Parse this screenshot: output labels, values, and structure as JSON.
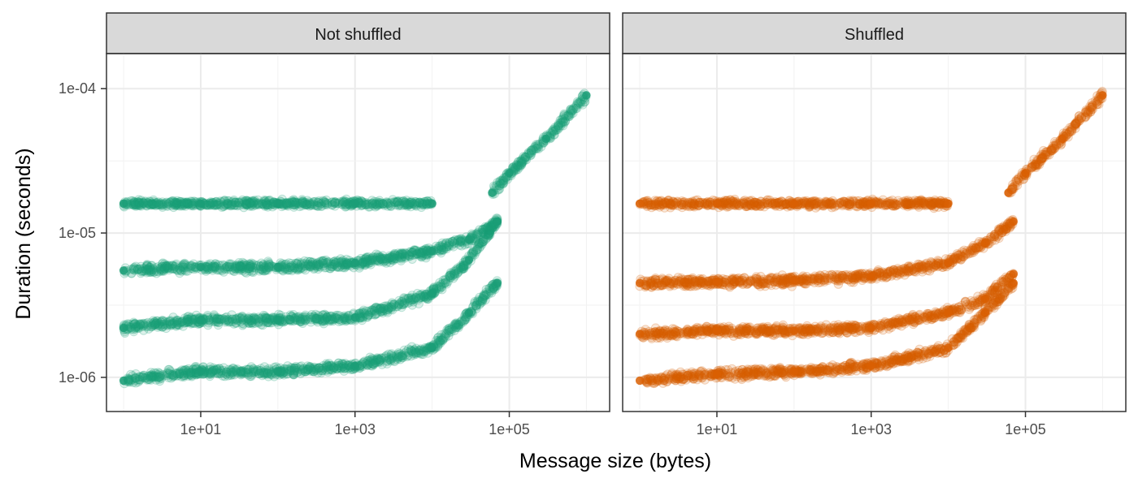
{
  "chart_data": {
    "type": "scatter",
    "x_scale": "log10",
    "y_scale": "log10",
    "xlabel": "Message size (bytes)",
    "ylabel": "Duration (seconds)",
    "xlim": [
      0.6,
      2000000
    ],
    "ylim": [
      5.8e-07,
      0.000175
    ],
    "x_ticks": [
      10,
      1000,
      100000
    ],
    "x_tick_labels": [
      "1e+01",
      "1e+03",
      "1e+05"
    ],
    "y_ticks": [
      1e-06,
      1e-05,
      0.0001
    ],
    "y_tick_labels": [
      "1e-06",
      "1e-05",
      "1e-04"
    ],
    "grid": true,
    "legend": "none",
    "panels": [
      {
        "title": "Not shuffled",
        "color": "#1b9e77",
        "series": [
          {
            "x": [
              1,
              10,
              100,
              1000,
              10000,
              30000,
              70000
            ],
            "y": [
              9.5e-07,
              1.1e-06,
              1.1e-06,
              1.2e-06,
              1.6e-06,
              2.8e-06,
              4.5e-06
            ]
          },
          {
            "x": [
              1,
              10,
              100,
              1000,
              10000,
              30000,
              70000
            ],
            "y": [
              2.2e-06,
              2.5e-06,
              2.5e-06,
              2.6e-06,
              3.8e-06,
              6.5e-06,
              1.2e-05
            ]
          },
          {
            "x": [
              1,
              10,
              100,
              1000,
              10000,
              30000,
              70000
            ],
            "y": [
              5.5e-06,
              5.8e-06,
              5.8e-06,
              6.2e-06,
              7.5e-06,
              9e-06,
              1.2e-05
            ]
          },
          {
            "x": [
              1,
              10,
              100,
              1000,
              10000
            ],
            "y": [
              1.6e-05,
              1.6e-05,
              1.6e-05,
              1.6e-05,
              1.6e-05
            ]
          },
          {
            "x": [
              60000,
              100000,
              300000,
              1000000
            ],
            "y": [
              1.9e-05,
              2.6e-05,
              4.5e-05,
              9e-05
            ]
          }
        ]
      },
      {
        "title": "Shuffled",
        "color": "#d95f02",
        "series": [
          {
            "x": [
              1,
              10,
              100,
              1000,
              10000,
              30000,
              70000
            ],
            "y": [
              9.5e-07,
              1.05e-06,
              1.1e-06,
              1.2e-06,
              1.6e-06,
              2.8e-06,
              4.5e-06
            ]
          },
          {
            "x": [
              1,
              10,
              100,
              1000,
              10000,
              30000,
              70000
            ],
            "y": [
              2e-06,
              2.1e-06,
              2.1e-06,
              2.2e-06,
              2.8e-06,
              3.5e-06,
              5.2e-06
            ]
          },
          {
            "x": [
              1,
              10,
              100,
              1000,
              10000,
              30000,
              70000
            ],
            "y": [
              4.5e-06,
              4.6e-06,
              4.7e-06,
              5e-06,
              6.2e-06,
              8.5e-06,
              1.2e-05
            ]
          },
          {
            "x": [
              1,
              10,
              100,
              1000,
              10000
            ],
            "y": [
              1.6e-05,
              1.6e-05,
              1.6e-05,
              1.6e-05,
              1.6e-05
            ]
          },
          {
            "x": [
              60000,
              100000,
              300000,
              1000000
            ],
            "y": [
              1.9e-05,
              2.6e-05,
              4.5e-05,
              9e-05
            ]
          }
        ]
      }
    ]
  }
}
